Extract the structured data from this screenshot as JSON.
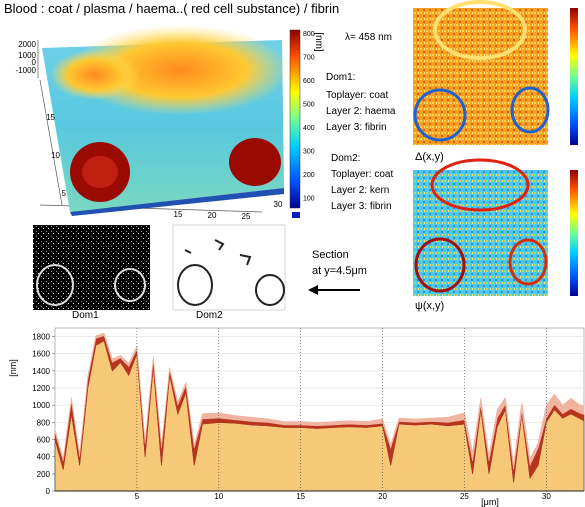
{
  "figure": {
    "title": "Blood :  coat / plasma / haema..( red cell substance)  / fibrin",
    "surface": {
      "zticks": [
        2000,
        1000,
        0,
        -1000
      ],
      "yticks": [
        15,
        10,
        5
      ],
      "xticks": [
        15,
        20,
        25,
        30
      ],
      "colorbar_label": "[nm]",
      "colorbar_ticks": [
        800,
        700,
        600,
        500,
        400,
        300,
        200,
        100
      ]
    },
    "wavelength": "λ= 458 nm",
    "dom1": {
      "title": "Dom1:",
      "lines": [
        "Toplayer:  coat",
        "Layer 2:    haema",
        "Layer 3:    fibrin"
      ]
    },
    "dom2": {
      "title": "Dom2:",
      "lines": [
        "Toplayer: coat",
        "Layer 2: kern",
        "Layer 3: fibrin"
      ]
    },
    "delta_label": "Δ(x,y)",
    "psi_label": "ψ(x,y)",
    "dom1_map_label": "Dom1",
    "dom2_map_label": "Dom2",
    "section": [
      "Section",
      "at y=4.5μm"
    ]
  },
  "chart_data": {
    "type": "area",
    "xlabel": "[μm]",
    "ylabel": "[nm]",
    "x": [
      0,
      0.5,
      1,
      1.5,
      2,
      2.5,
      3,
      3.5,
      4,
      4.5,
      5,
      5.5,
      6,
      6.5,
      7,
      7.5,
      8,
      8.5,
      9,
      10,
      11,
      12,
      13,
      14,
      15,
      16,
      17,
      18,
      19,
      20,
      20.5,
      21,
      22,
      23,
      24,
      25,
      25.5,
      26,
      26.5,
      27,
      27.5,
      28,
      28.5,
      29,
      29.5,
      30,
      30.5,
      31,
      31.5,
      32,
      32.3
    ],
    "series": [
      {
        "color": "#f7c878",
        "values": [
          600,
          250,
          900,
          300,
          1200,
          1700,
          1750,
          1400,
          1500,
          1350,
          1600,
          400,
          1450,
          300,
          1350,
          900,
          1150,
          300,
          780,
          800,
          790,
          770,
          760,
          740,
          740,
          730,
          740,
          750,
          740,
          760,
          300,
          780,
          770,
          780,
          760,
          780,
          200,
          950,
          200,
          750,
          950,
          100,
          900,
          150,
          300,
          800,
          950,
          850,
          900,
          850,
          820
        ]
      },
      {
        "color": "#b8341f",
        "values": [
          80,
          100,
          150,
          100,
          100,
          80,
          60,
          100,
          50,
          100,
          50,
          150,
          80,
          200,
          60,
          100,
          80,
          200,
          60,
          50,
          40,
          40,
          40,
          30,
          30,
          30,
          30,
          30,
          30,
          30,
          200,
          30,
          30,
          30,
          40,
          50,
          150,
          60,
          150,
          100,
          60,
          150,
          40,
          150,
          200,
          50,
          60,
          50,
          60,
          60,
          70
        ]
      },
      {
        "color": "#f0b4a0",
        "values": [
          40,
          30,
          40,
          30,
          40,
          30,
          30,
          40,
          30,
          40,
          40,
          30,
          40,
          30,
          30,
          40,
          40,
          30,
          60,
          60,
          50,
          50,
          40,
          40,
          40,
          40,
          40,
          40,
          40,
          50,
          40,
          40,
          40,
          40,
          60,
          80,
          100,
          80,
          60,
          100,
          80,
          60,
          100,
          80,
          60,
          150,
          120,
          100,
          120,
          100,
          100
        ]
      }
    ],
    "xlim": [
      0,
      32.3
    ],
    "ylim": [
      0,
      1900
    ],
    "xticks": [
      5,
      10,
      15,
      20,
      25,
      30
    ],
    "yticks": [
      0,
      200,
      400,
      600,
      800,
      1000,
      1200,
      1400,
      1600,
      1800
    ],
    "grid": true
  }
}
